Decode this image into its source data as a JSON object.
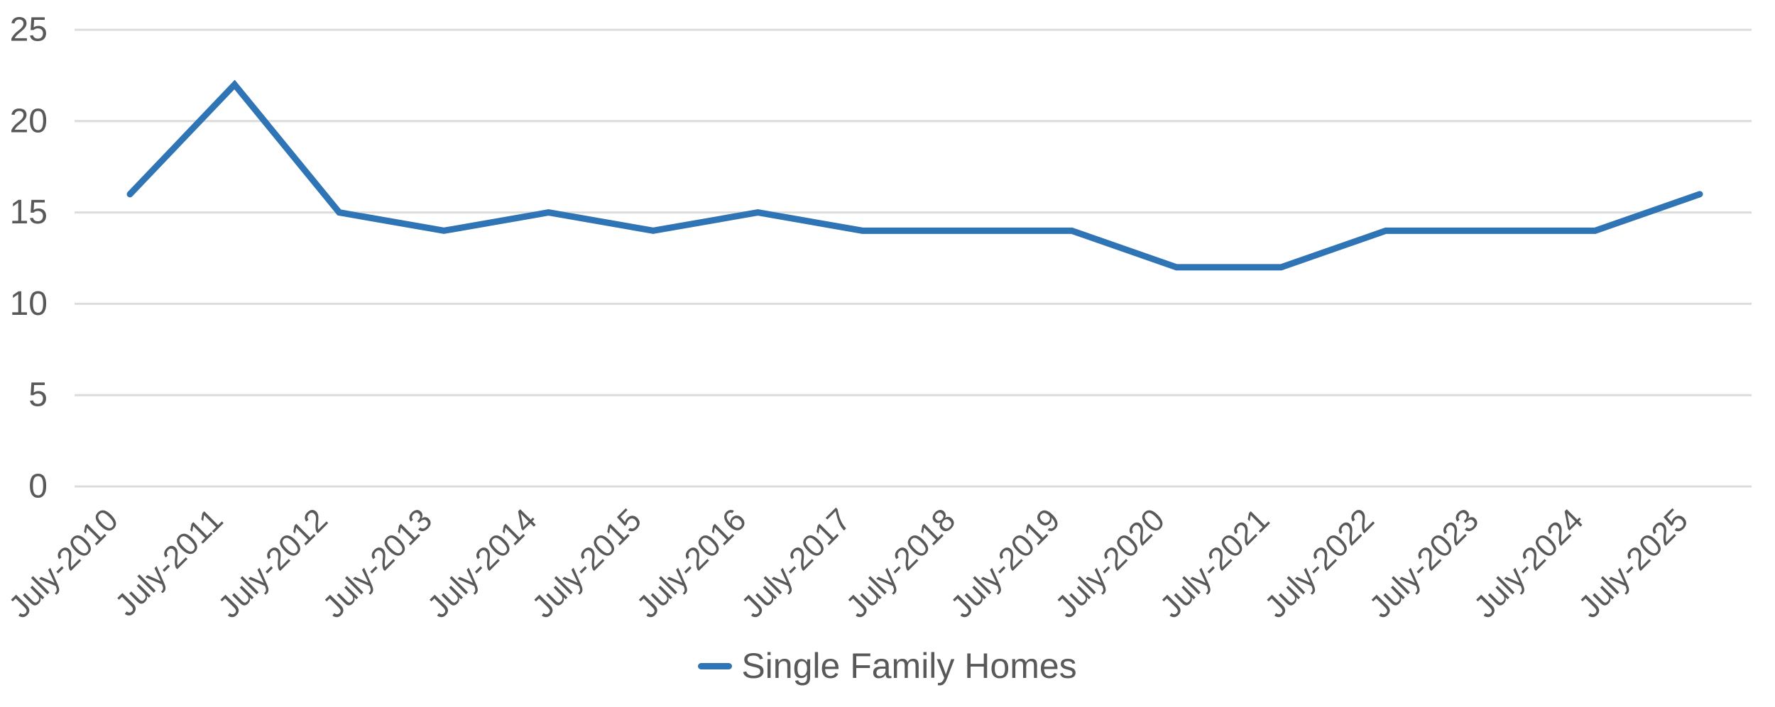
{
  "chart_data": {
    "type": "line",
    "title": "",
    "xlabel": "",
    "ylabel": "",
    "categories": [
      "July-2010",
      "July-2011",
      "July-2012",
      "July-2013",
      "July-2014",
      "July-2015",
      "July-2016",
      "July-2017",
      "July-2018",
      "July-2019",
      "July-2020",
      "July-2021",
      "July-2022",
      "July-2023",
      "July-2024",
      "July-2025"
    ],
    "series": [
      {
        "name": "Single Family Homes",
        "values": [
          16,
          22,
          15,
          14,
          15,
          14,
          15,
          14,
          14,
          14,
          12,
          12,
          14,
          14,
          14,
          16
        ]
      }
    ],
    "yticks": [
      0,
      5,
      10,
      15,
      20,
      25
    ],
    "ylim": [
      0,
      25
    ],
    "grid": "horizontal",
    "legend_position": "bottom-center",
    "x_label_rotation_deg": -45,
    "colors": {
      "series": "#2F75B5",
      "grid": "#DCDCDC",
      "axis_text": "#595959",
      "legend_text": "#595959"
    }
  }
}
